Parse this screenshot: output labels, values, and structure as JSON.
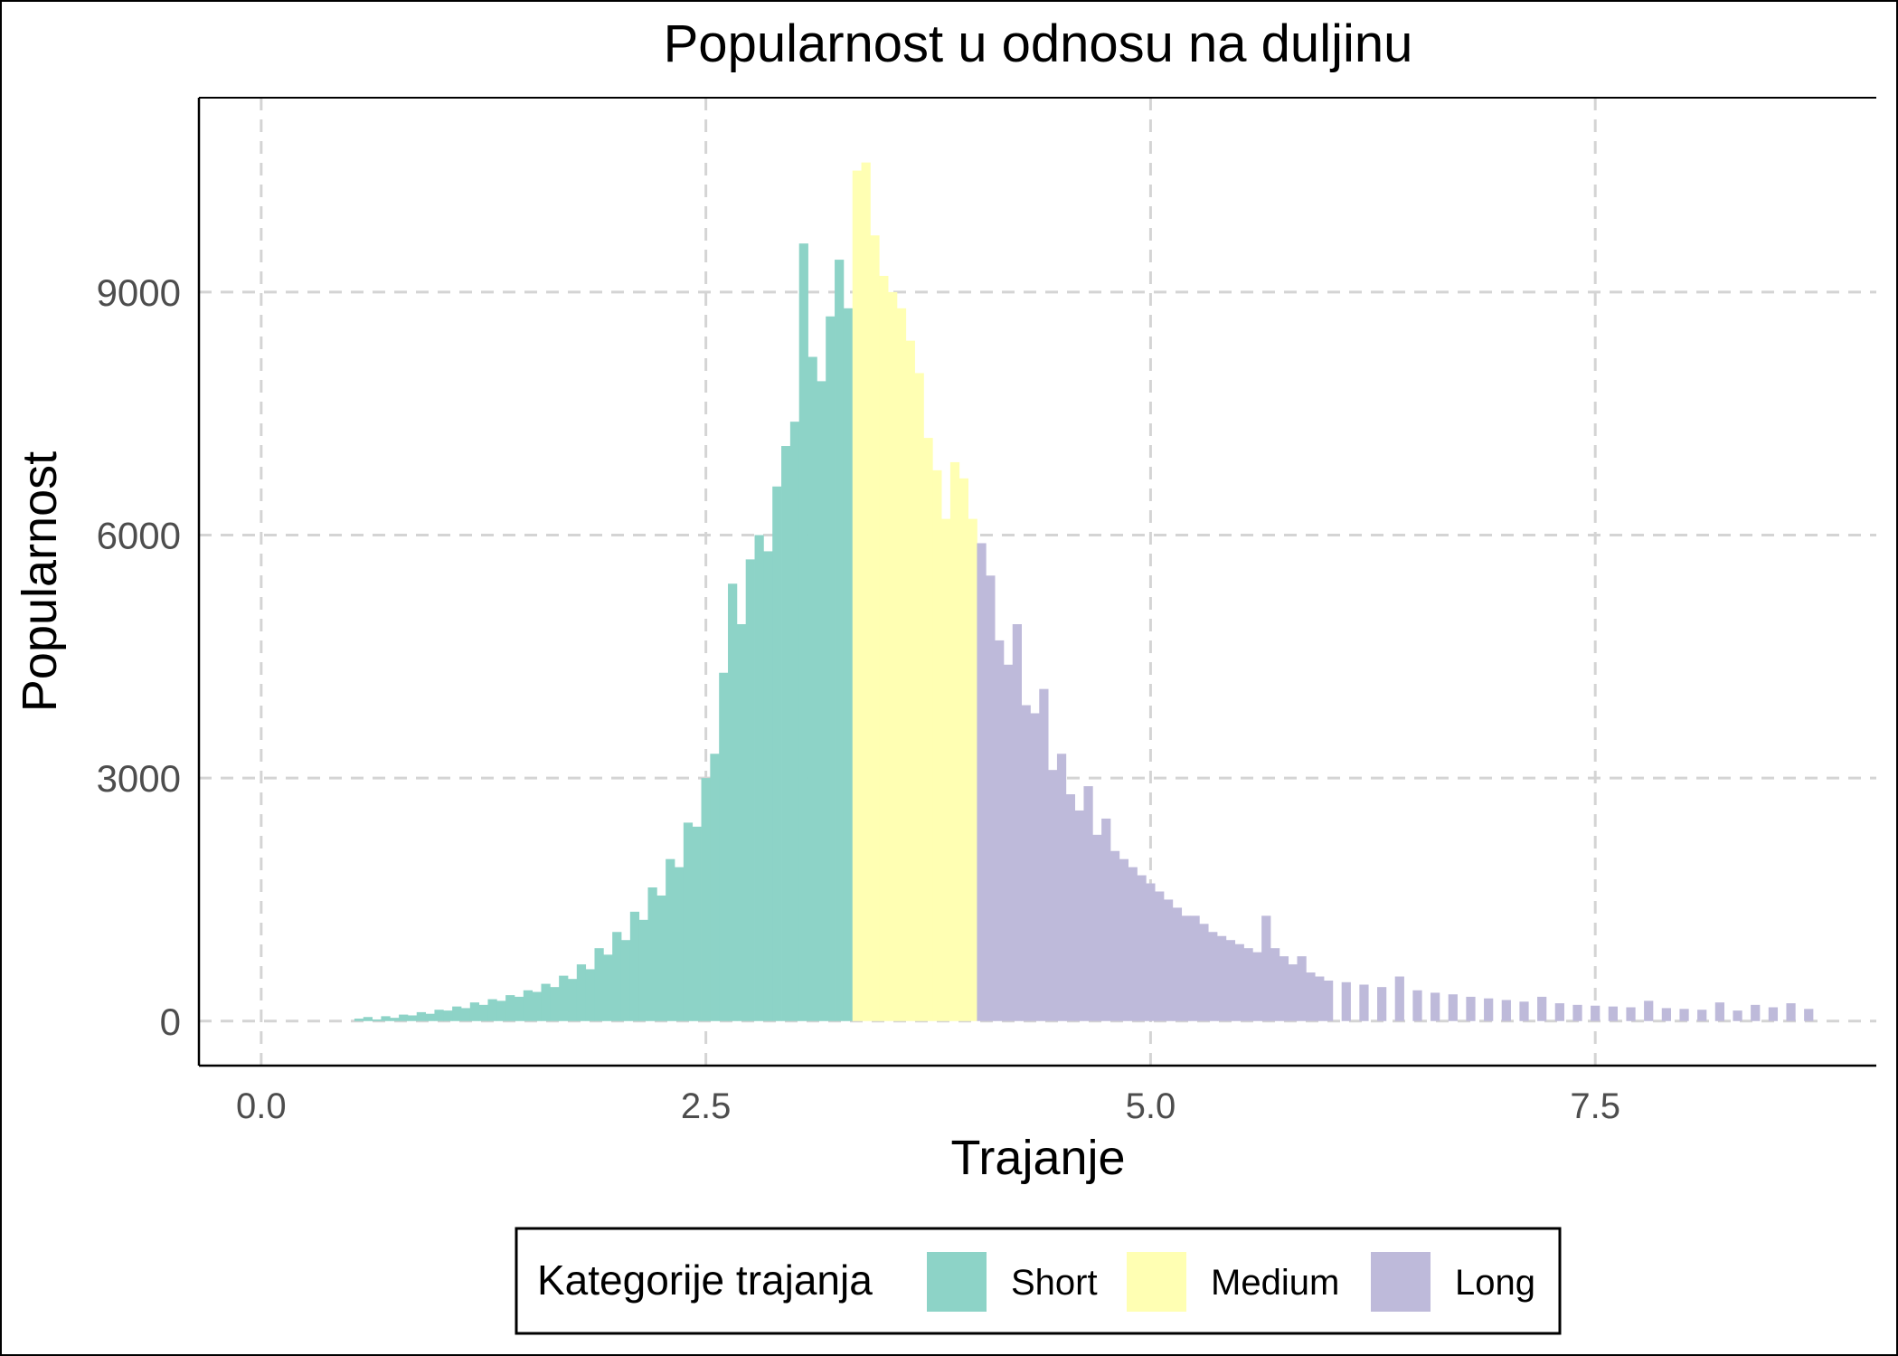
{
  "chart_data": {
    "type": "bar",
    "title": "Popularnost u odnosu na duljinu",
    "xlabel": "Trajanje",
    "ylabel": "Popularnost",
    "xlim": [
      -0.35,
      9.08
    ],
    "ylim": [
      -550,
      11400
    ],
    "x_ticks": [
      0,
      2.5,
      5,
      7.5
    ],
    "x_tick_labels": [
      "0.0",
      "2.5",
      "5.0",
      "7.5"
    ],
    "y_ticks": [
      0,
      3000,
      6000,
      9000
    ],
    "y_tick_labels": [
      "0",
      "3000",
      "6000",
      "9000"
    ],
    "grid": true,
    "legend_position": "bottom",
    "legend": {
      "title": "Kategorije trajanja",
      "entries": [
        {
          "label": "Short",
          "color": "#8dd3c7"
        },
        {
          "label": "Medium",
          "color": "#ffffb3"
        },
        {
          "label": "Long",
          "color": "#bebada"
        }
      ]
    },
    "series": [
      {
        "name": "Short",
        "color": "#8dd3c7",
        "x": [
          0.55,
          0.6,
          0.65,
          0.7,
          0.75,
          0.8,
          0.85,
          0.9,
          0.95,
          1.0,
          1.05,
          1.1,
          1.15,
          1.2,
          1.25,
          1.3,
          1.35,
          1.4,
          1.45,
          1.5,
          1.55,
          1.6,
          1.65,
          1.7,
          1.75,
          1.8,
          1.85,
          1.9,
          1.95,
          2.0,
          2.05,
          2.1,
          2.15,
          2.2,
          2.25,
          2.3,
          2.35,
          2.4,
          2.45,
          2.5,
          2.55,
          2.6,
          2.65,
          2.7,
          2.75,
          2.8,
          2.85,
          2.9,
          2.95,
          3.0,
          3.05,
          3.1,
          3.15,
          3.2,
          3.25,
          3.3
        ],
        "values": [
          30,
          50,
          20,
          60,
          40,
          80,
          70,
          110,
          90,
          140,
          130,
          180,
          160,
          230,
          200,
          270,
          250,
          320,
          300,
          380,
          360,
          460,
          420,
          560,
          520,
          700,
          640,
          900,
          820,
          1100,
          1000,
          1350,
          1250,
          1650,
          1550,
          2000,
          1900,
          2450,
          2400,
          3000,
          3300,
          4300,
          5400,
          4900,
          5700,
          6000,
          5800,
          6600,
          7100,
          7400,
          9600,
          8200,
          7900,
          8700,
          9400,
          8800
        ]
      },
      {
        "name": "Medium",
        "color": "#ffffb3",
        "x": [
          3.35,
          3.4,
          3.45,
          3.5,
          3.55,
          3.6,
          3.65,
          3.7,
          3.75,
          3.8,
          3.85,
          3.9,
          3.95,
          4.0
        ],
        "values": [
          10500,
          10600,
          9700,
          9200,
          9000,
          8800,
          8400,
          8000,
          7200,
          6800,
          6200,
          6900,
          6700,
          6200
        ]
      },
      {
        "name": "Long",
        "color": "#bebada",
        "x": [
          4.05,
          4.1,
          4.15,
          4.2,
          4.25,
          4.3,
          4.35,
          4.4,
          4.45,
          4.5,
          4.55,
          4.6,
          4.65,
          4.7,
          4.75,
          4.8,
          4.85,
          4.9,
          4.95,
          5.0,
          5.05,
          5.1,
          5.15,
          5.2,
          5.25,
          5.3,
          5.35,
          5.4,
          5.45,
          5.5,
          5.55,
          5.6,
          5.65,
          5.7,
          5.75,
          5.8,
          5.85,
          5.9,
          5.95,
          6.0,
          6.1,
          6.2,
          6.3,
          6.4,
          6.5,
          6.6,
          6.7,
          6.8,
          6.9,
          7.0,
          7.1,
          7.2,
          7.3,
          7.4,
          7.5,
          7.6,
          7.7,
          7.8,
          7.9,
          8.0,
          8.1,
          8.2,
          8.3,
          8.4,
          8.5,
          8.6,
          8.7
        ],
        "values": [
          5900,
          5500,
          4700,
          4400,
          4900,
          3900,
          3800,
          4100,
          3100,
          3300,
          2800,
          2600,
          2900,
          2300,
          2500,
          2100,
          2000,
          1900,
          1800,
          1700,
          1600,
          1500,
          1400,
          1300,
          1300,
          1200,
          1100,
          1050,
          1000,
          950,
          900,
          850,
          1300,
          900,
          800,
          700,
          800,
          600,
          550,
          500,
          480,
          450,
          420,
          550,
          380,
          350,
          330,
          300,
          280,
          260,
          240,
          300,
          220,
          200,
          190,
          180,
          170,
          250,
          160,
          150,
          140,
          230,
          130,
          200,
          170,
          220,
          150
        ]
      }
    ]
  }
}
